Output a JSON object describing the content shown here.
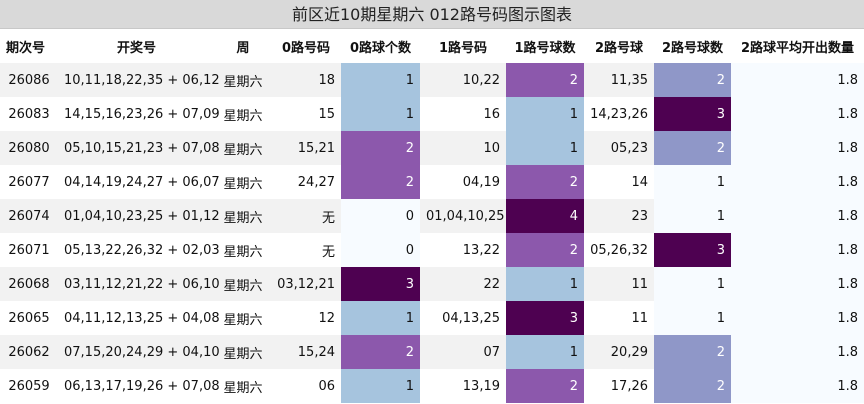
{
  "title": "前区近10期星期六 012路号码图示图表",
  "columns": [
    "期次号",
    "开奖号",
    "周",
    "0路号码",
    "0路球个数",
    "1路号码",
    "1路号球数",
    "2路号球",
    "2路号球数",
    "2路球平均开出数量"
  ],
  "rows": [
    {
      "issue": "26086",
      "numbers": "10,11,18,22,35 + 06,12",
      "week": "星期六",
      "r0": "18",
      "r0n": "1",
      "r1": "10,22",
      "r1n": "2",
      "r2": "11,35",
      "r2n": "2",
      "avg": "1.8"
    },
    {
      "issue": "26083",
      "numbers": "14,15,16,23,26 + 07,09",
      "week": "星期六",
      "r0": "15",
      "r0n": "1",
      "r1": "16",
      "r1n": "1",
      "r2": "14,23,26",
      "r2n": "3",
      "avg": "1.8"
    },
    {
      "issue": "26080",
      "numbers": "05,10,15,21,23 + 07,08",
      "week": "星期六",
      "r0": "15,21",
      "r0n": "2",
      "r1": "10",
      "r1n": "1",
      "r2": "05,23",
      "r2n": "2",
      "avg": "1.8"
    },
    {
      "issue": "26077",
      "numbers": "04,14,19,24,27 + 06,07",
      "week": "星期六",
      "r0": "24,27",
      "r0n": "2",
      "r1": "04,19",
      "r1n": "2",
      "r2": "14",
      "r2n": "1",
      "avg": "1.8"
    },
    {
      "issue": "26074",
      "numbers": "01,04,10,23,25 + 01,12",
      "week": "星期六",
      "r0": "无",
      "r0n": "0",
      "r1": "01,04,10,25",
      "r1n": "4",
      "r2": "23",
      "r2n": "1",
      "avg": "1.8"
    },
    {
      "issue": "26071",
      "numbers": "05,13,22,26,32 + 02,03",
      "week": "星期六",
      "r0": "无",
      "r0n": "0",
      "r1": "13,22",
      "r1n": "2",
      "r2": "05,26,32",
      "r2n": "3",
      "avg": "1.8"
    },
    {
      "issue": "26068",
      "numbers": "03,11,12,21,22 + 06,10",
      "week": "星期六",
      "r0": "03,12,21",
      "r0n": "3",
      "r1": "22",
      "r1n": "1",
      "r2": "11",
      "r2n": "1",
      "avg": "1.8"
    },
    {
      "issue": "26065",
      "numbers": "04,11,12,13,25 + 04,08",
      "week": "星期六",
      "r0": "12",
      "r0n": "1",
      "r1": "04,13,25",
      "r1n": "3",
      "r2": "11",
      "r2n": "1",
      "avg": "1.8"
    },
    {
      "issue": "26062",
      "numbers": "07,15,20,24,29 + 04,10",
      "week": "星期六",
      "r0": "15,24",
      "r0n": "2",
      "r1": "07",
      "r1n": "1",
      "r2": "20,29",
      "r2n": "2",
      "avg": "1.8"
    },
    {
      "issue": "26059",
      "numbers": "06,13,17,19,26 + 07,08",
      "week": "星期六",
      "r0": "06",
      "r0n": "1",
      "r1": "13,19",
      "r1n": "2",
      "r2": "17,26",
      "r2n": "2",
      "avg": "1.8"
    }
  ]
}
